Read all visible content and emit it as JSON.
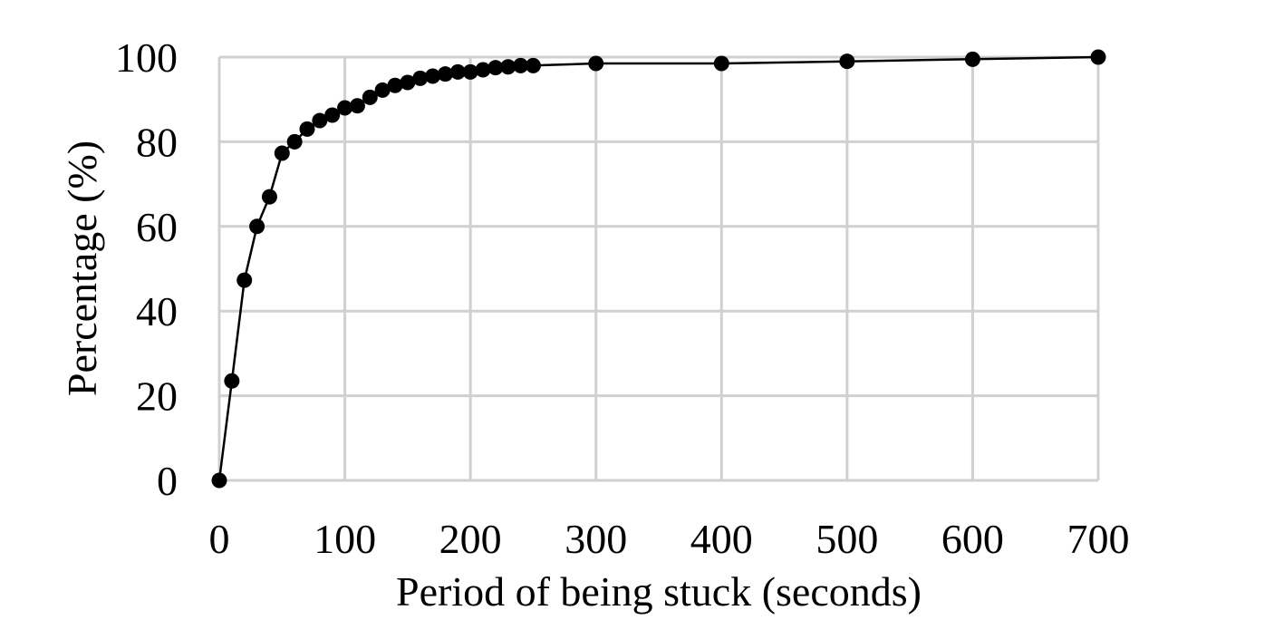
{
  "chart_data": {
    "type": "line",
    "title": "",
    "xlabel": "Period of being stuck (seconds)",
    "ylabel": "Percentage (%)",
    "xlim": [
      0,
      700
    ],
    "ylim": [
      0,
      100
    ],
    "xticks": [
      0,
      100,
      200,
      300,
      400,
      500,
      600,
      700
    ],
    "yticks": [
      0,
      20,
      40,
      60,
      80,
      100
    ],
    "grid": true,
    "legend": "none",
    "colors": {
      "line": "#000000",
      "marker": "#000000",
      "grid": "#d0d0d0"
    },
    "x": [
      0,
      10,
      20,
      30,
      40,
      50,
      60,
      70,
      80,
      90,
      100,
      110,
      120,
      130,
      140,
      150,
      160,
      170,
      180,
      190,
      200,
      210,
      220,
      230,
      240,
      250,
      300,
      400,
      500,
      600,
      700
    ],
    "series": [
      {
        "values": [
          0,
          23.5,
          47.3,
          60,
          67,
          77.3,
          80,
          83,
          85,
          86.3,
          88,
          88.5,
          90.5,
          92.2,
          93.3,
          94,
          95,
          95.5,
          96,
          96.5,
          96.5,
          97,
          97.5,
          97.7,
          98,
          98,
          98.5,
          98.5,
          99,
          99.5,
          100
        ]
      }
    ]
  }
}
